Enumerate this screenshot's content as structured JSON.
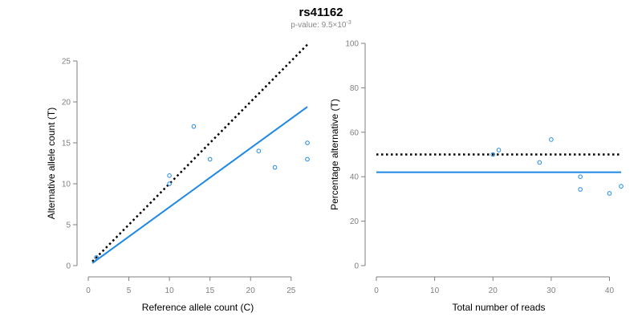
{
  "title": "rs41162",
  "subtitle": {
    "prefix": "p-value: 9.5×10",
    "exponent": "-3"
  },
  "colors": {
    "points": "#1e88e5",
    "fit_line": "#1e88e5",
    "expected_line": "#000000",
    "axis": "#7f7f7f"
  },
  "chart_data": [
    {
      "type": "scatter",
      "xlabel": "Reference allele count (C)",
      "ylabel": "Alternative allele count (T)",
      "xlim": [
        0,
        27
      ],
      "ylim": [
        0,
        25
      ],
      "xticks": [
        0,
        5,
        10,
        15,
        20,
        25
      ],
      "yticks": [
        0,
        5,
        10,
        15,
        20,
        25
      ],
      "points": [
        {
          "x": 1,
          "y": 1
        },
        {
          "x": 10,
          "y": 10
        },
        {
          "x": 10,
          "y": 11
        },
        {
          "x": 13,
          "y": 17
        },
        {
          "x": 15,
          "y": 13
        },
        {
          "x": 21,
          "y": 14
        },
        {
          "x": 23,
          "y": 12
        },
        {
          "x": 27,
          "y": 15
        },
        {
          "x": 27,
          "y": 13
        }
      ],
      "lines": [
        {
          "style": "dotted",
          "color": "#000000",
          "x": [
            0.5,
            27
          ],
          "y": [
            0.5,
            27
          ]
        },
        {
          "style": "solid",
          "color": "#1e88e5",
          "x": [
            0.5,
            27
          ],
          "y": [
            0.3,
            19.4
          ]
        }
      ],
      "grid": false
    },
    {
      "type": "scatter",
      "xlabel": "Total number of reads",
      "ylabel": "Percentage alternative (T)",
      "xlim": [
        0,
        42
      ],
      "ylim": [
        0,
        100
      ],
      "xticks": [
        0,
        10,
        20,
        30,
        40
      ],
      "yticks": [
        0,
        20,
        40,
        60,
        80,
        100
      ],
      "points": [
        {
          "x": 20,
          "y": 50
        },
        {
          "x": 21,
          "y": 52
        },
        {
          "x": 28,
          "y": 46.4
        },
        {
          "x": 30,
          "y": 56.7
        },
        {
          "x": 35,
          "y": 40
        },
        {
          "x": 35,
          "y": 34.3
        },
        {
          "x": 40,
          "y": 32.5
        },
        {
          "x": 42,
          "y": 35.7
        }
      ],
      "lines": [
        {
          "style": "dotted",
          "color": "#000000",
          "x": [
            0,
            42
          ],
          "y": [
            50,
            50
          ]
        },
        {
          "style": "solid",
          "color": "#1e88e5",
          "x": [
            0,
            42
          ],
          "y": [
            42,
            42
          ]
        }
      ],
      "grid": false
    }
  ]
}
